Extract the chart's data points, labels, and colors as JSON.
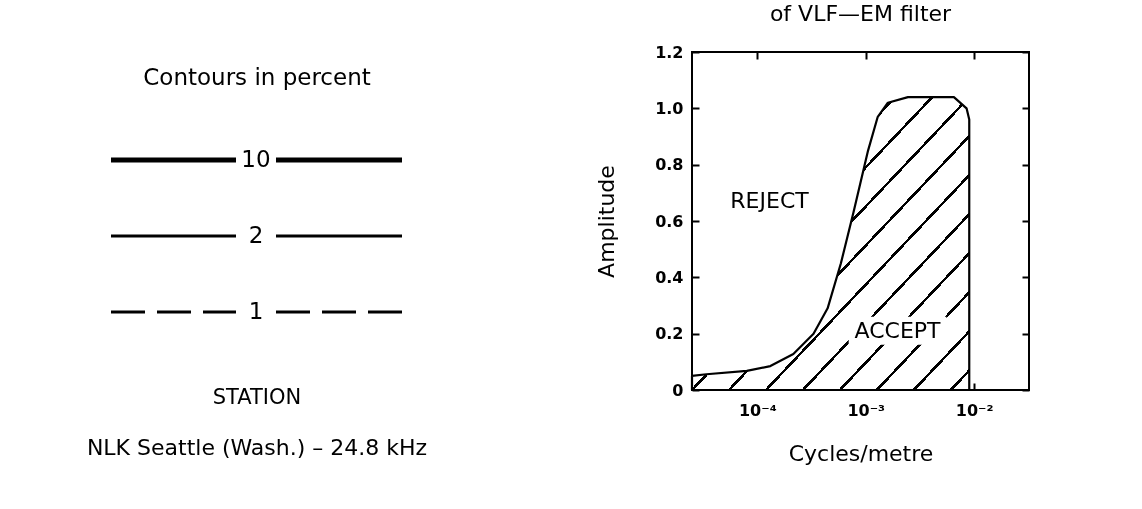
{
  "chart_data": [
    {
      "type": "other",
      "title": "Contours in percent",
      "series": [
        {
          "name": "10",
          "color": "#000000",
          "line_style": "solid"
        },
        {
          "name": "2",
          "color": "#000000",
          "line_style": "solid"
        },
        {
          "name": "1",
          "color": "#000000",
          "line_style": "dashed"
        }
      ],
      "annotations": [
        "STATION",
        "NLK Seattle (Wash.) – 24.8 kHz"
      ]
    },
    {
      "type": "area",
      "title": "of VLF—EM filter",
      "xlabel": "Cycles/metre",
      "ylabel": "Amplitude",
      "log": "x",
      "x": [
        2.5e-05,
        3.4e-05,
        8e-05,
        0.000132,
        0.000215,
        0.00033,
        0.000445,
        0.00059,
        0.00077,
        0.00105,
        0.00129,
        0.0016,
        0.00245,
        0.0065,
        0.0085,
        0.009,
        0.009
      ],
      "values": [
        0.05,
        0.056,
        0.068,
        0.085,
        0.128,
        0.2,
        0.29,
        0.45,
        0.63,
        0.85,
        0.97,
        1.02,
        1.04,
        1.04,
        1.0,
        0.96,
        0
      ],
      "color": "#000000",
      "xlim": [
        2.5e-05,
        0.032
      ],
      "xticks": [
        {
          "value": 0.0001,
          "label": "10⁻⁴"
        },
        {
          "value": 0.001,
          "label": "10⁻³"
        },
        {
          "value": 0.01,
          "label": "10⁻²"
        }
      ],
      "ylim": [
        0,
        1.2
      ],
      "yticks": [
        0,
        0.2,
        0.4,
        0.6,
        0.8,
        {
          "value": 1,
          "label": "1.0"
        },
        1.2
      ],
      "annotations": [
        "REJECT",
        "ACCEPT"
      ]
    }
  ]
}
